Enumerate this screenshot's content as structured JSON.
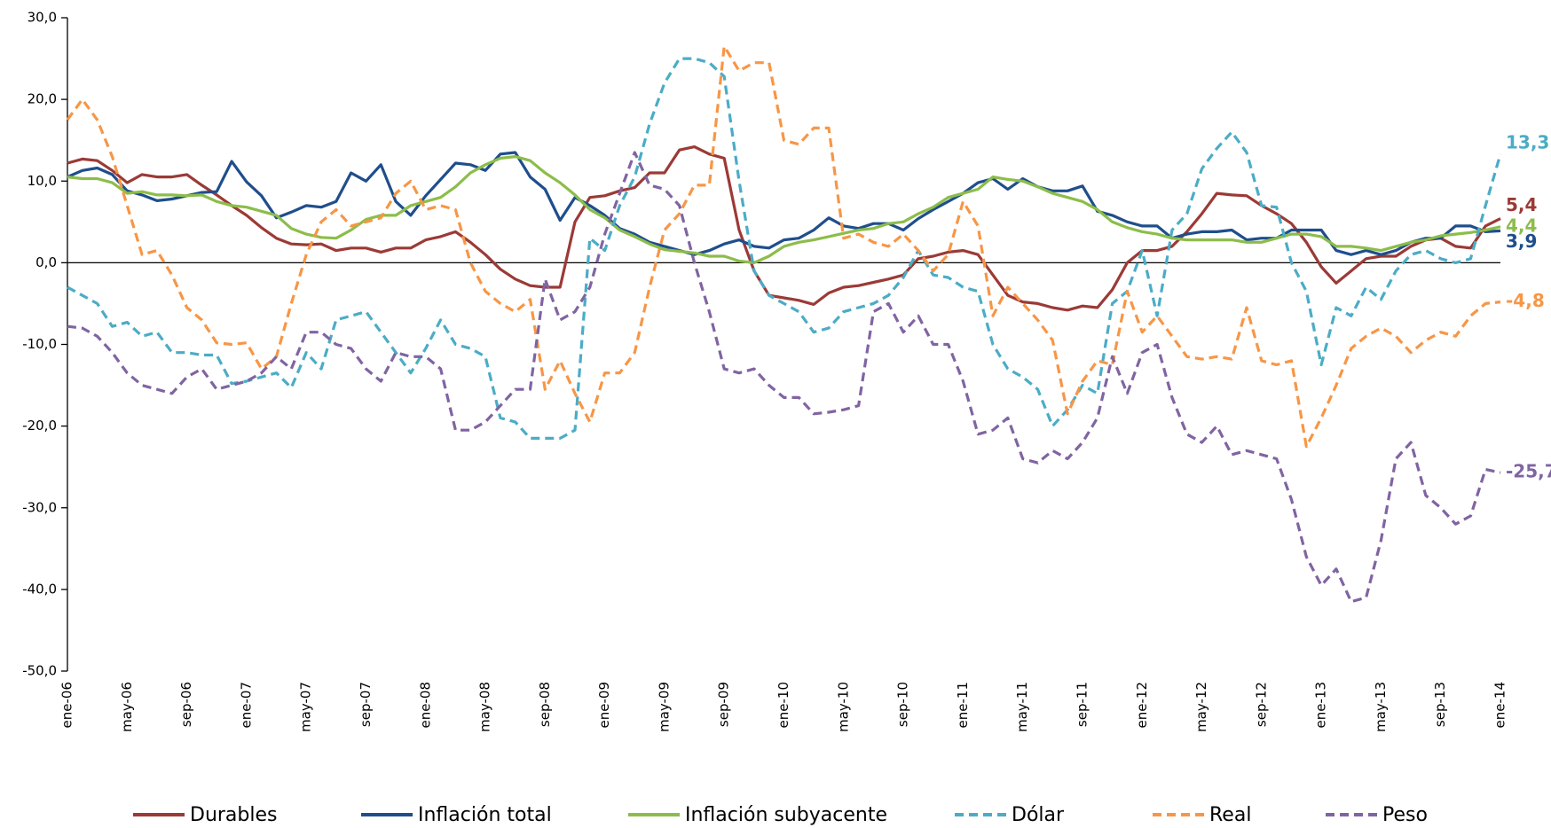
{
  "chart_data": {
    "type": "line",
    "categories": [
      "ene-06",
      null,
      null,
      null,
      "may-06",
      null,
      null,
      null,
      "sep-06",
      null,
      null,
      null,
      "ene-07",
      null,
      null,
      null,
      "may-07",
      null,
      null,
      null,
      "sep-07",
      null,
      null,
      null,
      "ene-08",
      null,
      null,
      null,
      "may-08",
      null,
      null,
      null,
      "sep-08",
      null,
      null,
      null,
      "ene-09",
      null,
      null,
      null,
      "may-09",
      null,
      null,
      null,
      "sep-09",
      null,
      null,
      null,
      "ene-10",
      null,
      null,
      null,
      "may-10",
      null,
      null,
      null,
      "sep-10",
      null,
      null,
      null,
      "ene-11",
      null,
      null,
      null,
      "may-11",
      null,
      null,
      null,
      "sep-11",
      null,
      null,
      null,
      "ene-12",
      null,
      null,
      null,
      "may-12",
      null,
      null,
      null,
      "sep-12",
      null,
      null,
      null,
      "ene-13",
      null,
      null,
      null,
      "may-13",
      null,
      null,
      null,
      "sep-13",
      null,
      null,
      null,
      "ene-14"
    ],
    "ylim": [
      -50,
      30
    ],
    "yticks": [
      {
        "value": 30,
        "label": "30,0"
      },
      {
        "value": 20,
        "label": "20,0"
      },
      {
        "value": 10,
        "label": "10,0"
      },
      {
        "value": 0,
        "label": "0,0"
      },
      {
        "value": -10,
        "label": "-10,0"
      },
      {
        "value": -20,
        "label": "-20,0"
      },
      {
        "value": -30,
        "label": "-30,0"
      },
      {
        "value": -40,
        "label": "-40,0"
      },
      {
        "value": -50,
        "label": "-50,0"
      }
    ],
    "legend": "bottom",
    "series": [
      {
        "name": "Durables",
        "color": "#9b3a36",
        "dashed": false,
        "value_labels": {
          "96": "5,4"
        },
        "values": [
          12.2,
          12.7,
          12.5,
          11.3,
          9.8,
          10.8,
          10.5,
          10.5,
          10.8,
          9.5,
          8.3,
          7.0,
          5.8,
          4.3,
          3.0,
          2.3,
          2.2,
          2.3,
          1.5,
          1.8,
          1.8,
          1.3,
          1.8,
          1.8,
          2.8,
          3.2,
          3.8,
          2.5,
          1.0,
          -0.8,
          -2.0,
          -2.8,
          -3.0,
          -3.0,
          5.0,
          8.0,
          8.2,
          8.8,
          9.2,
          11.0,
          11.0,
          13.8,
          14.2,
          13.3,
          12.8,
          4.0,
          -1.0,
          -4.0,
          -4.3,
          -4.6,
          -5.1,
          -3.7,
          -3.0,
          -2.8,
          -2.4,
          -2.0,
          -1.5,
          0.5,
          0.8,
          1.3,
          1.5,
          1.0,
          -1.5,
          -4.0,
          -4.8,
          -5.0,
          -5.5,
          -5.8,
          -5.3,
          -5.5,
          -3.3,
          0.0,
          1.5,
          1.5,
          2.0,
          3.8,
          6.0,
          8.5,
          8.3,
          8.2,
          7.0,
          6.0,
          4.8,
          2.5,
          -0.5,
          -2.5,
          -1.0,
          0.5,
          0.8,
          0.8,
          2.0,
          2.8,
          3.0,
          2.0,
          1.8,
          4.5,
          5.4
        ]
      },
      {
        "name": "Inflación total",
        "color": "#1f4e8c",
        "dashed": false,
        "value_labels": {
          "96": "3,9"
        },
        "values": [
          10.5,
          11.3,
          11.6,
          10.8,
          8.8,
          8.3,
          7.6,
          7.8,
          8.2,
          8.6,
          8.7,
          12.4,
          9.9,
          8.2,
          5.5,
          6.2,
          7.0,
          6.8,
          7.5,
          11.0,
          10.0,
          12.0,
          7.5,
          5.8,
          8.2,
          10.2,
          12.2,
          12.0,
          11.3,
          13.3,
          13.5,
          10.5,
          9.0,
          5.2,
          8.0,
          7.0,
          5.8,
          4.2,
          3.5,
          2.5,
          2.0,
          1.5,
          1.0,
          1.5,
          2.3,
          2.8,
          2.0,
          1.8,
          2.8,
          3.0,
          4.0,
          5.5,
          4.5,
          4.2,
          4.8,
          4.8,
          4.0,
          5.4,
          6.5,
          7.5,
          8.5,
          9.8,
          10.3,
          9.0,
          10.3,
          9.3,
          8.8,
          8.8,
          9.4,
          6.3,
          5.8,
          5.0,
          4.5,
          4.5,
          3.0,
          3.5,
          3.8,
          3.8,
          4.0,
          2.8,
          3.0,
          3.0,
          4.0,
          4.0,
          4.0,
          1.5,
          1.0,
          1.5,
          1.0,
          1.5,
          2.5,
          3.0,
          3.0,
          4.5,
          4.5,
          3.8,
          3.9
        ]
      },
      {
        "name": "Inflación subyacente",
        "color": "#8cbd4a",
        "dashed": false,
        "value_labels": {
          "96": "4,4"
        },
        "values": [
          10.5,
          10.3,
          10.3,
          9.8,
          8.5,
          8.7,
          8.3,
          8.3,
          8.2,
          8.3,
          7.5,
          7.0,
          6.8,
          6.3,
          5.8,
          4.2,
          3.5,
          3.1,
          3.0,
          4.0,
          5.3,
          5.8,
          5.8,
          7.0,
          7.5,
          8.0,
          9.3,
          11.0,
          12.0,
          12.8,
          13.0,
          12.5,
          11.0,
          9.8,
          8.3,
          6.5,
          5.5,
          4.0,
          3.2,
          2.3,
          1.6,
          1.4,
          1.2,
          0.8,
          0.8,
          0.2,
          0.0,
          0.8,
          2.0,
          2.5,
          2.8,
          3.2,
          3.6,
          4.0,
          4.2,
          4.8,
          5.0,
          6.0,
          6.8,
          8.0,
          8.5,
          9.0,
          10.5,
          10.2,
          10.0,
          9.3,
          8.5,
          8.0,
          7.5,
          6.5,
          5.0,
          4.3,
          3.8,
          3.5,
          3.0,
          2.8,
          2.8,
          2.8,
          2.8,
          2.5,
          2.5,
          3.0,
          3.5,
          3.5,
          3.2,
          2.0,
          2.0,
          1.8,
          1.5,
          2.0,
          2.5,
          2.8,
          3.3,
          3.5,
          3.7,
          4.0,
          4.4
        ]
      },
      {
        "name": "Dólar",
        "color": "#4bacc6",
        "dashed": true,
        "value_labels": {
          "96": "13,3"
        },
        "values": [
          -3.0,
          -4.0,
          -5.0,
          -7.8,
          -7.3,
          -9.0,
          -8.5,
          -11.0,
          -11.0,
          -11.3,
          -11.3,
          -14.8,
          -14.5,
          -14.0,
          -13.5,
          -15.3,
          -11.0,
          -13.0,
          -7.0,
          -6.5,
          -6.0,
          -8.5,
          -11.0,
          -13.5,
          -10.5,
          -7.0,
          -10.0,
          -10.5,
          -11.5,
          -19.0,
          -19.5,
          -21.5,
          -21.5,
          -21.5,
          -20.5,
          3.0,
          1.5,
          7.0,
          10.5,
          17.0,
          22.0,
          25.0,
          25.0,
          24.5,
          22.8,
          10.0,
          -1.0,
          -4.0,
          -5.0,
          -6.0,
          -8.5,
          -8.0,
          -6.0,
          -5.5,
          -5.0,
          -4.0,
          -1.8,
          1.5,
          -1.5,
          -1.8,
          -3.0,
          -3.5,
          -10.0,
          -13.0,
          -14.0,
          -15.5,
          -20.0,
          -18.0,
          -15.0,
          -16.0,
          -5.0,
          -3.5,
          1.5,
          -6.5,
          4.0,
          6.0,
          11.5,
          14.0,
          16.0,
          13.5,
          7.0,
          6.8,
          0.0,
          -3.5,
          -12.5,
          -5.5,
          -6.5,
          -3.0,
          -4.5,
          -1.0,
          1.0,
          1.5,
          0.5,
          0.0,
          0.5,
          7.0,
          13.3
        ]
      },
      {
        "name": "Real",
        "color": "#f79646",
        "dashed": true,
        "value_labels": {
          "96": "-4,8"
        },
        "values": [
          17.5,
          20.0,
          17.5,
          13.0,
          7.0,
          1.0,
          1.5,
          -1.5,
          -5.5,
          -7.0,
          -9.8,
          -10.0,
          -9.8,
          -13.0,
          -11.5,
          -5.0,
          1.0,
          5.0,
          6.5,
          4.5,
          5.0,
          5.5,
          8.5,
          10.0,
          6.5,
          7.0,
          6.5,
          0.0,
          -3.5,
          -5.0,
          -6.0,
          -4.5,
          -15.5,
          -12.0,
          -16.0,
          -19.5,
          -13.5,
          -13.5,
          -11.0,
          -3.0,
          4.0,
          6.0,
          9.5,
          9.5,
          26.5,
          23.5,
          24.5,
          24.5,
          15.0,
          14.5,
          16.5,
          16.5,
          3.0,
          3.5,
          2.5,
          2.0,
          3.5,
          1.5,
          -1.0,
          1.0,
          7.5,
          4.5,
          -6.5,
          -3.0,
          -5.0,
          -7.0,
          -9.5,
          -18.5,
          -14.5,
          -12.0,
          -12.5,
          -3.5,
          -8.5,
          -6.5,
          -9.0,
          -11.5,
          -11.8,
          -11.5,
          -11.8,
          -5.5,
          -12.0,
          -12.5,
          -12.0,
          -22.5,
          -19.0,
          -15.0,
          -10.5,
          -9.0,
          -8.0,
          -9.0,
          -11.0,
          -9.5,
          -8.5,
          -9.0,
          -6.5,
          -5.0,
          -4.8
        ]
      },
      {
        "name": "Peso",
        "color": "#8064a2",
        "dashed": true,
        "value_labels": {
          "96": "-25,7"
        },
        "values": [
          -7.8,
          -8.0,
          -9.0,
          -11.0,
          -13.5,
          -15.0,
          -15.5,
          -16.0,
          -14.0,
          -13.0,
          -15.5,
          -15.0,
          -14.5,
          -13.5,
          -11.5,
          -13.0,
          -8.5,
          -8.5,
          -10.0,
          -10.5,
          -13.0,
          -14.5,
          -11.0,
          -11.5,
          -11.5,
          -13.0,
          -20.5,
          -20.5,
          -19.5,
          -17.5,
          -15.5,
          -15.5,
          -2.0,
          -7.0,
          -6.0,
          -3.0,
          3.5,
          8.5,
          13.5,
          9.5,
          9.0,
          7.0,
          0.0,
          -6.0,
          -13.0,
          -13.5,
          -13.0,
          -15.0,
          -16.5,
          -16.5,
          -18.5,
          -18.3,
          -18.0,
          -17.5,
          -6.0,
          -5.0,
          -8.5,
          -6.5,
          -10.0,
          -10.0,
          -14.5,
          -21.0,
          -20.5,
          -19.0,
          -24.0,
          -24.5,
          -23.0,
          -24.0,
          -22.0,
          -19.0,
          -11.5,
          -16.0,
          -11.0,
          -10.0,
          -16.5,
          -21.0,
          -22.0,
          -20.0,
          -23.5,
          -23.0,
          -23.5,
          -24.0,
          -29.0,
          -36.0,
          -39.5,
          -37.5,
          -41.5,
          -41.0,
          -34.0,
          -24.0,
          -22.0,
          -28.5,
          -30.0,
          -32.0,
          -31.0,
          -25.3,
          -25.7
        ]
      }
    ]
  }
}
